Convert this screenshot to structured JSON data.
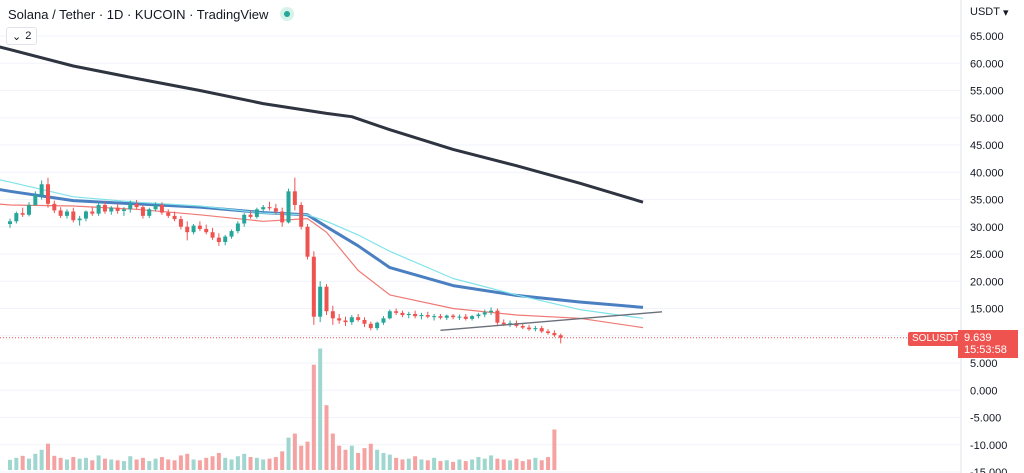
{
  "header": {
    "title": "Solana / Tether · 1D · KUCOIN · TradingView",
    "indicator_count": "2",
    "currency": "USDT"
  },
  "price_tag": {
    "symbol": "SOLUSDT",
    "price": "9.639",
    "countdown": "15:53:58"
  },
  "colors": {
    "up": "#26a69a",
    "down": "#ef5350",
    "volume_up": "#9fd6cf",
    "volume_down": "#f5a3a2",
    "ma_long": "#2f3441",
    "ma_mid": "#4a7fc1",
    "ma_cyan": "#7fe3ea",
    "ma_red": "#ef7a75",
    "trendline": "#6b6f7a",
    "grid": "#f0f3fa"
  },
  "chart_data": {
    "type": "candlestick",
    "title": "Solana / Tether · 1D · KUCOIN · TradingView",
    "y_axis": {
      "position": "right",
      "currency": "USDT",
      "ticks": [
        "65.000",
        "60.000",
        "55.000",
        "50.000",
        "45.000",
        "40.000",
        "35.000",
        "30.000",
        "25.000",
        "20.000",
        "15.000",
        "10.000",
        "5.000",
        "0.000",
        "-5.000",
        "-10.000",
        "-15.000"
      ],
      "range": [
        -15,
        67
      ],
      "grid": true
    },
    "last_price": 9.639,
    "ohlc": [
      [
        30.5,
        31.5,
        29.8,
        31.0
      ],
      [
        31.0,
        32.8,
        30.6,
        32.5
      ],
      [
        32.5,
        33.5,
        31.8,
        32.2
      ],
      [
        32.2,
        34.5,
        31.9,
        34.0
      ],
      [
        34.0,
        36.5,
        33.8,
        35.8
      ],
      [
        35.8,
        38.5,
        35.0,
        37.8
      ],
      [
        37.8,
        39.0,
        33.5,
        34.2
      ],
      [
        34.2,
        34.8,
        32.5,
        33.0
      ],
      [
        33.0,
        33.6,
        31.6,
        32.0
      ],
      [
        32.0,
        33.2,
        31.5,
        32.8
      ],
      [
        32.8,
        33.5,
        30.8,
        31.2
      ],
      [
        31.2,
        32.0,
        30.2,
        31.5
      ],
      [
        31.5,
        33.0,
        31.0,
        32.8
      ],
      [
        32.8,
        33.6,
        32.0,
        32.4
      ],
      [
        32.4,
        34.5,
        32.0,
        34.0
      ],
      [
        34.0,
        34.6,
        32.4,
        32.8
      ],
      [
        32.8,
        33.8,
        32.2,
        33.5
      ],
      [
        33.5,
        34.2,
        32.4,
        32.9
      ],
      [
        32.9,
        33.6,
        32.0,
        33.2
      ],
      [
        33.2,
        34.8,
        32.6,
        34.2
      ],
      [
        34.2,
        34.9,
        33.2,
        33.6
      ],
      [
        33.6,
        34.0,
        31.5,
        32.0
      ],
      [
        32.0,
        33.5,
        31.6,
        33.2
      ],
      [
        33.2,
        34.5,
        32.8,
        34.0
      ],
      [
        34.0,
        34.5,
        32.2,
        32.6
      ],
      [
        32.6,
        33.2,
        31.6,
        32.0
      ],
      [
        32.0,
        32.8,
        31.0,
        31.4
      ],
      [
        31.4,
        32.0,
        29.5,
        30.0
      ],
      [
        30.0,
        31.0,
        27.5,
        29.0
      ],
      [
        29.0,
        30.5,
        28.6,
        30.2
      ],
      [
        30.2,
        31.0,
        29.2,
        29.6
      ],
      [
        29.6,
        30.4,
        28.6,
        29.0
      ],
      [
        29.0,
        29.8,
        27.6,
        28.0
      ],
      [
        28.0,
        28.8,
        26.5,
        27.2
      ],
      [
        27.2,
        28.5,
        26.6,
        28.2
      ],
      [
        28.2,
        29.5,
        27.8,
        29.2
      ],
      [
        29.2,
        31.0,
        28.8,
        30.6
      ],
      [
        30.6,
        32.5,
        30.0,
        32.2
      ],
      [
        32.2,
        33.0,
        31.5,
        31.8
      ],
      [
        31.8,
        33.5,
        31.5,
        33.2
      ],
      [
        33.2,
        34.0,
        32.8,
        33.6
      ],
      [
        33.6,
        34.6,
        33.0,
        33.4
      ],
      [
        33.4,
        34.2,
        32.2,
        32.8
      ],
      [
        32.8,
        33.5,
        30.0,
        30.8
      ],
      [
        30.8,
        37.0,
        30.6,
        36.5
      ],
      [
        36.5,
        39.0,
        33.0,
        34.0
      ],
      [
        34.0,
        34.5,
        29.5,
        30.0
      ],
      [
        30.0,
        30.5,
        24.0,
        24.5
      ],
      [
        24.5,
        25.5,
        12.0,
        13.5
      ],
      [
        13.5,
        20.0,
        12.5,
        19.0
      ],
      [
        19.0,
        19.5,
        13.8,
        14.5
      ],
      [
        14.5,
        15.5,
        12.0,
        13.2
      ],
      [
        13.2,
        14.0,
        12.2,
        12.8
      ],
      [
        12.8,
        13.5,
        11.8,
        12.5
      ],
      [
        12.5,
        13.8,
        12.0,
        13.4
      ],
      [
        13.4,
        14.0,
        12.6,
        12.9
      ],
      [
        12.9,
        13.4,
        11.6,
        12.2
      ],
      [
        12.2,
        12.6,
        11.0,
        11.4
      ],
      [
        11.4,
        12.6,
        11.0,
        12.4
      ],
      [
        12.4,
        13.6,
        12.0,
        13.2
      ],
      [
        13.2,
        14.8,
        13.0,
        14.5
      ],
      [
        14.5,
        15.0,
        13.8,
        14.2
      ],
      [
        14.2,
        14.6,
        13.4,
        13.8
      ],
      [
        13.8,
        14.4,
        13.2,
        14.0
      ],
      [
        14.0,
        14.6,
        13.2,
        13.6
      ],
      [
        13.6,
        14.2,
        13.0,
        13.8
      ],
      [
        13.8,
        14.4,
        13.2,
        13.5
      ],
      [
        13.5,
        14.0,
        12.8,
        13.6
      ],
      [
        13.6,
        14.0,
        13.0,
        13.3
      ],
      [
        13.3,
        13.9,
        12.9,
        13.7
      ],
      [
        13.7,
        14.0,
        13.0,
        13.4
      ],
      [
        13.4,
        13.9,
        12.9,
        13.5
      ],
      [
        13.5,
        14.0,
        12.8,
        13.1
      ],
      [
        13.1,
        13.8,
        12.8,
        13.6
      ],
      [
        13.6,
        14.2,
        13.2,
        13.9
      ],
      [
        13.9,
        14.8,
        13.4,
        14.3
      ],
      [
        14.3,
        15.2,
        13.8,
        14.6
      ],
      [
        14.6,
        15.0,
        12.0,
        12.4
      ],
      [
        12.4,
        13.0,
        11.8,
        12.1
      ],
      [
        12.1,
        12.8,
        11.6,
        12.3
      ],
      [
        12.3,
        12.8,
        11.5,
        11.8
      ],
      [
        11.8,
        12.2,
        11.2,
        11.5
      ],
      [
        11.5,
        12.0,
        10.9,
        11.2
      ],
      [
        11.2,
        11.8,
        10.8,
        11.4
      ],
      [
        11.4,
        11.8,
        10.5,
        10.8
      ],
      [
        10.8,
        11.2,
        10.2,
        10.5
      ],
      [
        10.5,
        11.0,
        9.8,
        10.1
      ],
      [
        10.1,
        10.4,
        8.6,
        9.639
      ]
    ],
    "volume": [
      2.5,
      3,
      3.5,
      2.8,
      4,
      5,
      6.5,
      3.5,
      3,
      2.6,
      3.2,
      2.8,
      3,
      2.4,
      3.6,
      2.8,
      2.6,
      2.4,
      2.2,
      3.4,
      2.6,
      3,
      2.2,
      2.8,
      3.2,
      2.6,
      2.4,
      3.6,
      4,
      2.6,
      2.4,
      3,
      3.4,
      4.2,
      3,
      2.6,
      3.4,
      4,
      3.2,
      3,
      2.6,
      2.8,
      3.2,
      4.6,
      8,
      9,
      6,
      7,
      26,
      30,
      16,
      9,
      6,
      5,
      6,
      4.2,
      5.4,
      6.5,
      5,
      4.2,
      3.8,
      3,
      2.6,
      2.8,
      3.4,
      2.6,
      2.4,
      3,
      2.2,
      2.4,
      2,
      2.6,
      2.2,
      2.6,
      3.2,
      2.8,
      3.6,
      2.8,
      2.6,
      2.4,
      2.8,
      2.2,
      2.6,
      3,
      2.4,
      3.2,
      10
    ],
    "moving_averages": [
      {
        "color": "#2f3441",
        "points": [
          [
            -10,
            65.5
          ],
          [
            0,
            62.5
          ],
          [
            10,
            59.5
          ],
          [
            20,
            57.2
          ],
          [
            30,
            55
          ],
          [
            40,
            52.6
          ],
          [
            50,
            50.8
          ],
          [
            54,
            50.2
          ],
          [
            60,
            47.8
          ],
          [
            70,
            44.2
          ],
          [
            80,
            41.2
          ],
          [
            90,
            38
          ],
          [
            100,
            34.5
          ]
        ]
      },
      {
        "color": "#4a7fc1",
        "points": [
          [
            -5,
            37.5
          ],
          [
            0,
            36.5
          ],
          [
            10,
            34.8
          ],
          [
            20,
            34.2
          ],
          [
            30,
            33.6
          ],
          [
            40,
            32.6
          ],
          [
            47,
            32.2
          ],
          [
            50,
            30
          ],
          [
            55,
            26.5
          ],
          [
            60,
            22.5
          ],
          [
            70,
            19.2
          ],
          [
            80,
            17.4
          ],
          [
            90,
            16.2
          ],
          [
            100,
            15.2
          ]
        ]
      },
      {
        "color": "#7fe3ea",
        "points": [
          [
            -5,
            39.5
          ],
          [
            0,
            38.2
          ],
          [
            10,
            35.5
          ],
          [
            20,
            34.5
          ],
          [
            30,
            33.8
          ],
          [
            40,
            32.5
          ],
          [
            47,
            32.2
          ],
          [
            50,
            31
          ],
          [
            55,
            28.5
          ],
          [
            60,
            25.5
          ],
          [
            70,
            20.5
          ],
          [
            80,
            17.5
          ],
          [
            90,
            14.8
          ],
          [
            100,
            13.2
          ]
        ]
      },
      {
        "color": "#ef7a75",
        "points": [
          [
            -5,
            34.5
          ],
          [
            0,
            34
          ],
          [
            10,
            33.8
          ],
          [
            20,
            33.2
          ],
          [
            30,
            32.2
          ],
          [
            40,
            31
          ],
          [
            47,
            31.5
          ],
          [
            50,
            29
          ],
          [
            55,
            22
          ],
          [
            60,
            17.5
          ],
          [
            70,
            15
          ],
          [
            80,
            13.8
          ],
          [
            90,
            13.2
          ],
          [
            100,
            11.5
          ]
        ]
      }
    ],
    "trendline": [
      [
        68,
        11.0
      ],
      [
        103,
        14.4
      ]
    ]
  }
}
